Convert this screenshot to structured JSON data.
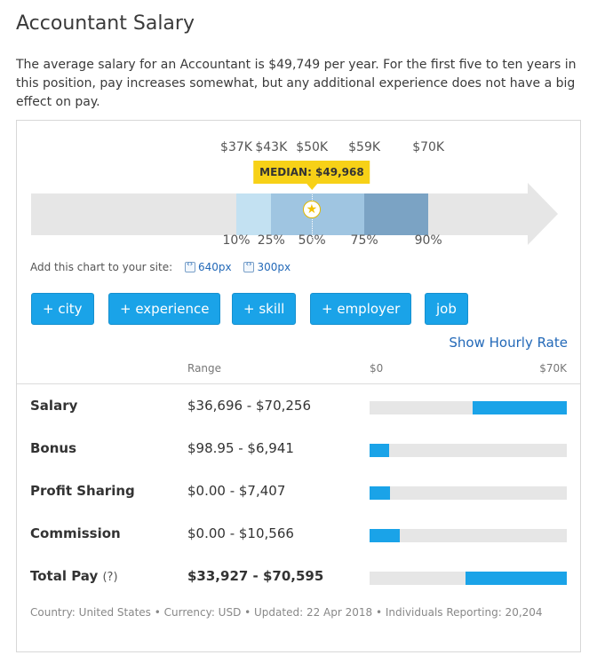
{
  "header": {
    "title": "Accountant Salary",
    "description": "The average salary for an Accountant is $49,749 per year. For the first five to ten years in this position, pay increases somewhat, but any additional experience does not have a big effect on pay."
  },
  "percentile_chart": {
    "top_ticks": [
      {
        "label": "$37K",
        "value": 37
      },
      {
        "label": "$43K",
        "value": 43
      },
      {
        "label": "$50K",
        "value": 50
      },
      {
        "label": "$59K",
        "value": 59
      },
      {
        "label": "$70K",
        "value": 70
      }
    ],
    "bottom_ticks": [
      {
        "label": "10%",
        "value": 37
      },
      {
        "label": "25%",
        "value": 43
      },
      {
        "label": "50%",
        "value": 50
      },
      {
        "label": "75%",
        "value": 59
      },
      {
        "label": "90%",
        "value": 70
      }
    ],
    "median_label": "MEDIAN: $49,968",
    "median_value": 49.968,
    "bands": [
      {
        "from": 37,
        "to": 43,
        "color": "#c3e1f2"
      },
      {
        "from": 43,
        "to": 59,
        "color": "#9fc5e1"
      },
      {
        "from": 59,
        "to": 70,
        "color": "#7ba3c4"
      }
    ],
    "star_color": "#f2c200",
    "tag_color": "#f7d117"
  },
  "add_chart": {
    "label": "Add this chart to your site:",
    "link_640": "640px",
    "link_300": "300px"
  },
  "filters": {
    "city": "+ city",
    "experience": "+ experience",
    "skill": "+ skill",
    "employer": "+ employer",
    "job": "job"
  },
  "show_hourly": "Show Hourly Rate",
  "table": {
    "range_header": "Range",
    "scale_min": "$0",
    "scale_max": "$70K",
    "rows": [
      {
        "label": "Salary",
        "range": "$36,696 - $70,256",
        "low": 36696,
        "high": 70256
      },
      {
        "label": "Bonus",
        "range": "$98.95 - $6,941",
        "low": 98.95,
        "high": 6941
      },
      {
        "label": "Profit Sharing",
        "range": "$0.00 - $7,407",
        "low": 0,
        "high": 7407
      },
      {
        "label": "Commission",
        "range": "$0.00 - $10,566",
        "low": 0,
        "high": 10566
      },
      {
        "label": "Total Pay",
        "help": "(?)",
        "range": "$33,927 - $70,595",
        "low": 33927,
        "high": 70595
      }
    ]
  },
  "footer": "Country: United States • Currency: USD • Updated: 22 Apr 2018 • Individuals Reporting: 20,204",
  "accent_color": "#1aa3e8",
  "link_color": "#2369b8"
}
